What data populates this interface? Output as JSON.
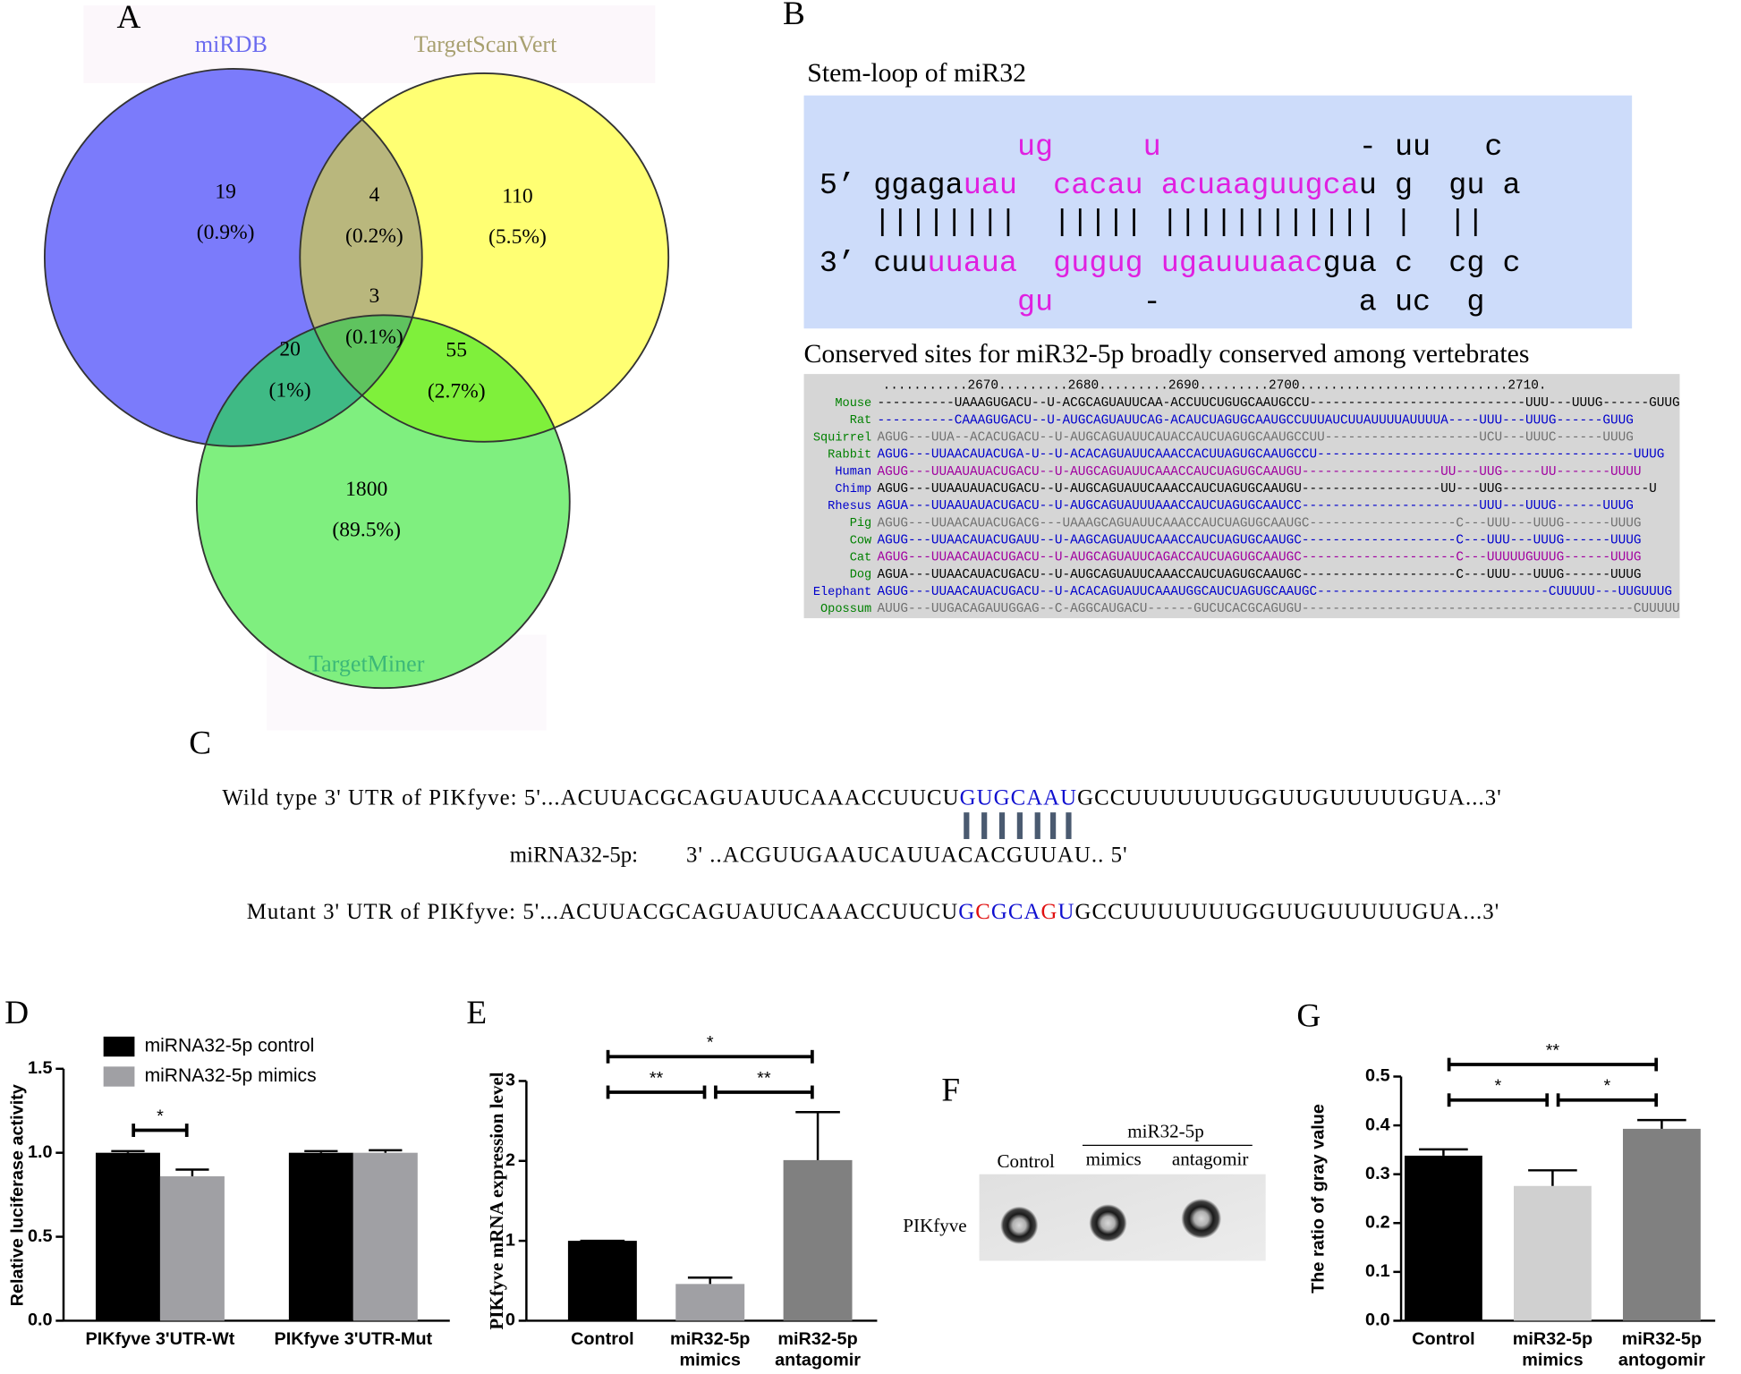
{
  "venn": {
    "panel": "A",
    "sets": [
      {
        "name": "miRDB",
        "label_color": "#6b6bef"
      },
      {
        "name": "TargetScanVert",
        "label_color": "#a8a070"
      },
      {
        "name": "TargetMiner",
        "label_color": "#3cb878"
      }
    ],
    "regions": [
      {
        "count": 19,
        "percent": "(0.9%)",
        "color": "#7b7bfb"
      },
      {
        "count": 4,
        "percent": "(0.2%)",
        "color": "#b9b77d"
      },
      {
        "count": 110,
        "percent": "(5.5%)",
        "color": "#ffff73"
      },
      {
        "count": 3,
        "percent": "(0.1%)",
        "color": "#5fc35f"
      },
      {
        "count": 20,
        "percent": "(1%)",
        "color": "#3fba85"
      },
      {
        "count": 55,
        "percent": "(2.7%)",
        "color": "#7ff03b"
      },
      {
        "count": 1800,
        "percent": "(89.5%)",
        "color": "#7fef7f"
      }
    ]
  },
  "stem_loop": {
    "panel": "B",
    "title": "Stem-loop of miR32",
    "rows": [
      [
        {
          "text": "           ug",
          "color": "#e020e0"
        },
        {
          "text": "     u",
          "color": "#e020e0"
        },
        {
          "text": "           - uu   c",
          "color": "#000000"
        }
      ],
      [
        {
          "text": "5’ ggaga",
          "color": "#000000"
        },
        {
          "text": "uau",
          "color": "#e020e0"
        },
        {
          "text": "  cacau",
          "color": "#e020e0"
        },
        {
          "text": " acuaaguugca",
          "color": "#e020e0"
        },
        {
          "text": "u g  gu a",
          "color": "#000000"
        }
      ],
      [
        {
          "text": "   ||||||||  ||||| |||||||||||| |  ||",
          "color": "#000000"
        }
      ],
      [
        {
          "text": "3’ cuu",
          "color": "#000000"
        },
        {
          "text": "uuaua",
          "color": "#e020e0"
        },
        {
          "text": "  gugug",
          "color": "#e020e0"
        },
        {
          "text": " ugauuuaac",
          "color": "#e020e0"
        },
        {
          "text": "gua c  cg c",
          "color": "#000000"
        }
      ],
      [
        {
          "text": "           gu",
          "color": "#e020e0"
        },
        {
          "text": "     -",
          "color": "#000000"
        },
        {
          "text": "           a uc  g",
          "color": "#000000"
        }
      ]
    ]
  },
  "alignment": {
    "title": "Conserved sites for miR32-5p broadly conserved among vertebrates",
    "ruler": "...........2670.........2680.........2690.........2700...........................2710.",
    "species": [
      {
        "name": "Mouse",
        "name_color": "#008000",
        "color": "#000000",
        "sequence": "----------UAAAGUGACU--U-ACGCAGUAUUCAA-ACCUUCUGUGCAAUGCCU----------------------------UUU---UUUG------GUUG"
      },
      {
        "name": "Rat",
        "name_color": "#008000",
        "color": "#0000cc",
        "sequence": "----------CAAAGUGACU--U-AUGCAGUAUUCAG-ACAUCUAGUGCAAUGCCUUUAUCUUAUUUUAUUUUA----UUU---UUUG------GUUG"
      },
      {
        "name": "Squirrel",
        "name_color": "#008000",
        "color": "#707070",
        "sequence": "AGUG---UUA--ACACUGACU--U-AUGCAGUAUUCAUACCAUCUAGUGCAAUGCCUU--------------------UCU---UUUC------UUUG"
      },
      {
        "name": "Rabbit",
        "name_color": "#008000",
        "color": "#0000cc",
        "sequence": "AGUG---UUAACAUACUGA-U--U-ACACAGUAUUCAAACCACUUAGUGCAAUGCCU-----------------------------------------UUUG"
      },
      {
        "name": "Human",
        "name_color": "#0000cc",
        "color": "#a000a0",
        "sequence": "AGUG---UUAAUAUACUGACU--U-AUGCAGUAUUCAAACCAUCUAGUGCAAUGU------------------UU---UUG-----UU-------UUUU"
      },
      {
        "name": "Chimp",
        "name_color": "#0000cc",
        "color": "#000000",
        "sequence": "AGUG---UUAAUAUACUGACU--U-AUGCAGUAUUCAAACCAUCUAGUGCAAUGU------------------UU---UUG-------------------U"
      },
      {
        "name": "Rhesus",
        "name_color": "#0000cc",
        "color": "#0000cc",
        "sequence": "AGUA---UUAAUAUACUGACU--U-AUGCAGUAUUUAAACCAUCUAGUGCAAUCC-----------------------UUU---UUUG------UUUG"
      },
      {
        "name": "Pig",
        "name_color": "#008000",
        "color": "#707070",
        "sequence": "AGUG---UUAACAUACUGACG---UAAAGCAGUAUUCAAACCAUCUAGUGCAAUGC-------------------C---UUU---UUUG------UUUG"
      },
      {
        "name": "Cow",
        "name_color": "#008000",
        "color": "#0000cc",
        "sequence": "AGUG---UUAACAUACUGAUU--U-AAGCAGUAUUCAAACCAUCUAGUGCAAUGC--------------------C---UUU---UUUG------UUUG"
      },
      {
        "name": "Cat",
        "name_color": "#008000",
        "color": "#a000a0",
        "sequence": "AGUG---UUAACAUACUGACU--U-AUGCAGUAUUCAGACCAUCUAGUGCAAUGC--------------------C---UUUUUGUUUG------UUUG"
      },
      {
        "name": "Dog",
        "name_color": "#008000",
        "color": "#000000",
        "sequence": "AGUA---UUAACAUACUGACU--U-AUGCAGUAUUCAAACCAUCUAGUGCAAUGC--------------------C---UUU---UUUG------UUUG"
      },
      {
        "name": "Elephant",
        "name_color": "#0000cc",
        "color": "#0000cc",
        "sequence": "AGUG---UUAACAUACUGACU--U-ACACAGUAUUCAAAUGGCAUCUAGUGCAAUGC------------------------------CUUUUU---UUGUUUG"
      },
      {
        "name": "Opossum",
        "name_color": "#008000",
        "color": "#707070",
        "sequence": "AUUG---UUGACAGAUUGGAG--C-AGGCAUGACU------GUCUCACGCAGUGU-------------------------------------------CUUUUU"
      }
    ]
  },
  "sequences": {
    "panel": "C",
    "rows": [
      [
        {
          "text": "Wild type 3' UTR of PIKfyve: 5'...ACUUACGCAGUAUUCAAACCUUCU",
          "color": "#000000"
        },
        {
          "text": "GUGCAAU",
          "color": "#1010d0"
        },
        {
          "text": "GCCUUUUUUUGGUUGUUUUUGUA...3'",
          "color": "#000000"
        }
      ],
      [
        {
          "text": "miRNA32-5p:",
          "color": "#000000"
        },
        {
          "text": "3' ..ACGUUGAAUCAUUACACGUUAU.. 5'",
          "color": "#000000"
        }
      ],
      [
        {
          "text": "Mutant 3' UTR of PIKfyve: 5'...ACUUACGCAGUAUUCAAACCUUCU",
          "color": "#000000"
        },
        {
          "text": "G",
          "color": "#1010d0"
        },
        {
          "text": "C",
          "color": "#e01010"
        },
        {
          "text": "GCA",
          "color": "#1010d0"
        },
        {
          "text": "G",
          "color": "#e01010"
        },
        {
          "text": "U",
          "color": "#1010d0"
        },
        {
          "text": "GCCUUUUUUUGGUUGUUUUUGUA...3'",
          "color": "#000000"
        }
      ]
    ]
  },
  "blot": {
    "panel": "F",
    "group": "miR32-5p",
    "lanes": [
      "Control",
      "mimics",
      "antagomir"
    ],
    "target": "PIKfyve"
  },
  "chart_data": [
    {
      "type": "bar",
      "panel": "D",
      "ylabel": "Relative luciferase activity",
      "categories": [
        [
          "PIKfyve 3'UTR-Wt"
        ],
        [
          "PIKfyve 3'UTR-Mut"
        ]
      ],
      "series": [
        {
          "name": "miRNA32-5p control",
          "color": "#000000",
          "values": [
            1.0,
            1.0
          ],
          "errors": [
            0.01,
            0.01
          ]
        },
        {
          "name": "miRNA32-5p mimics",
          "color": "#a0a0a4",
          "values": [
            0.86,
            1.0
          ],
          "errors": [
            0.04,
            0.015
          ]
        }
      ],
      "ylim": [
        0,
        1.5
      ],
      "yticks": [
        {
          "value": 0,
          "label": "0.0"
        },
        0.5,
        {
          "value": 1,
          "label": "1.0"
        },
        1.5
      ],
      "legend": "upper left",
      "significance": [
        {
          "category": 0,
          "between": [
            0,
            1
          ],
          "label": "*"
        }
      ]
    },
    {
      "type": "bar",
      "panel": "E",
      "ylabel": "PIKfyve mRNA expression level",
      "categories": [
        [
          "Control"
        ],
        [
          "miR32-5p",
          "mimics"
        ],
        [
          "miR32-5p",
          "antagomir"
        ]
      ],
      "values": [
        1.0,
        0.46,
        2.01
      ],
      "errors": [
        0,
        0.08,
        0.6
      ],
      "colors": [
        "#000000",
        "#a0a0a4",
        "#808080"
      ],
      "ylim": [
        0,
        3
      ],
      "yticks": [
        0,
        1,
        2,
        3
      ],
      "significance": [
        {
          "between": [
            0,
            1
          ],
          "label": "**"
        },
        {
          "between": [
            1,
            2
          ],
          "label": "**"
        },
        {
          "between": [
            0,
            2
          ],
          "label": "*"
        }
      ]
    },
    {
      "type": "bar",
      "panel": "G",
      "ylabel": "The ratio of gray value",
      "categories": [
        [
          "Control"
        ],
        [
          "miR32-5p",
          "mimics"
        ],
        [
          "miR32-5p",
          "antogomir"
        ]
      ],
      "values": [
        0.338,
        0.276,
        0.393
      ],
      "errors": [
        0.013,
        0.032,
        0.018
      ],
      "colors": [
        "#000000",
        "#d0d0d0",
        "#808080"
      ],
      "ylim": [
        0,
        0.5
      ],
      "yticks": [
        {
          "value": 0,
          "label": "0.0"
        },
        0.1,
        0.2,
        0.3,
        0.4,
        0.5
      ],
      "significance": [
        {
          "between": [
            0,
            1
          ],
          "label": "*"
        },
        {
          "between": [
            1,
            2
          ],
          "label": "*"
        },
        {
          "between": [
            0,
            2
          ],
          "label": "**"
        }
      ]
    }
  ]
}
